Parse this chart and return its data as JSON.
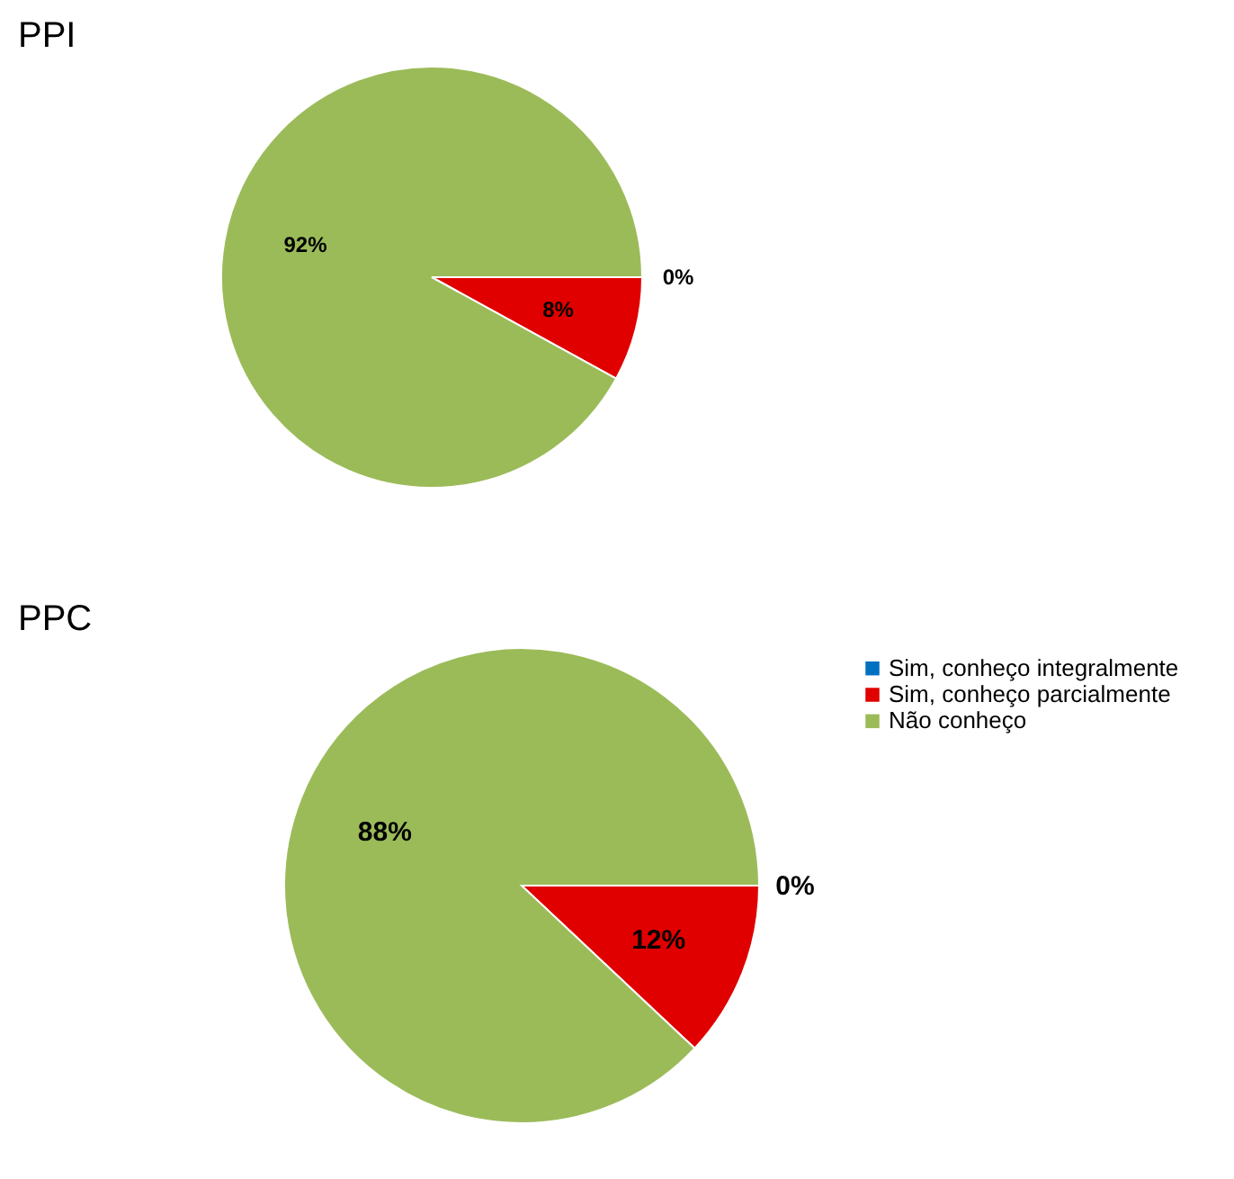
{
  "chart_data": [
    {
      "type": "pie",
      "title": "PPI",
      "categories": [
        null,
        null,
        null
      ],
      "values": [
        0,
        8,
        92
      ],
      "colors": [
        "#0070c0",
        "#e00000",
        "#9bbb59"
      ],
      "value_labels": [
        "0%",
        "8%",
        "92%"
      ],
      "legend": false
    },
    {
      "type": "pie",
      "title": "PPC",
      "categories": [
        "Sim, conheço integralmente",
        "Sim, conheço parcialmente",
        "Não conheço"
      ],
      "values": [
        0,
        12,
        88
      ],
      "colors": [
        "#0070c0",
        "#e00000",
        "#9bbb59"
      ],
      "value_labels": [
        "0%",
        "12%",
        "88%"
      ],
      "legend": "right"
    }
  ]
}
